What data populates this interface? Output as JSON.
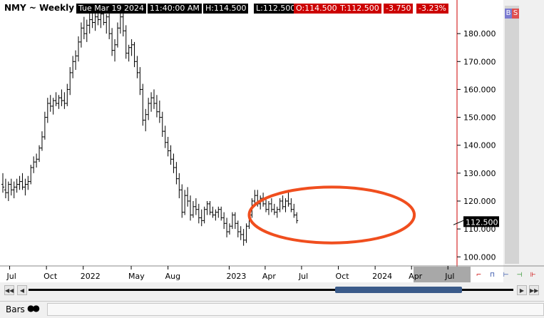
{
  "header": {
    "title": "NMY ~ Weekly",
    "date": "Tue Mar 19 2024",
    "time": "11:40:00 AM",
    "high": "H:114.500",
    "low": "L:112.500",
    "open": "O:114.500",
    "last": "T:112.500",
    "change": "-3.750",
    "change_pct": "-3.23%",
    "b_label": "B",
    "s_label": "S"
  },
  "price_tag": "112.500",
  "colors": {
    "ellipse": "#f04e1e",
    "bars": "#000000",
    "price_tag_bg": "#000000",
    "red_box": "#cc0000",
    "scroll_thumb": "#3b5b8a"
  },
  "status": {
    "bars_label": "Bars"
  },
  "icons": [
    "scroll-first-icon",
    "scroll-left-icon",
    "scroll-right-icon",
    "scroll-last-icon",
    "chain-icon"
  ],
  "chart_data": {
    "type": "ohlc-bar",
    "interval": "weekly",
    "ylim": [
      97,
      190
    ],
    "yticks": [
      100,
      110,
      120,
      130,
      140,
      150,
      160,
      170,
      180
    ],
    "ytick_labels": [
      "100.000",
      "110.000",
      "120.000",
      "130.000",
      "140.000",
      "150.000",
      "160.000",
      "170.000",
      "180.000"
    ],
    "xlim": [
      "2021-06-14",
      "2024-07-22"
    ],
    "xticks": [
      {
        "label": "Jul",
        "date": "2021-07-01"
      },
      {
        "label": "Oct",
        "date": "2021-10-01"
      },
      {
        "label": "2022",
        "date": "2022-01-01"
      },
      {
        "label": "May",
        "date": "2022-05-01"
      },
      {
        "label": "Aug",
        "date": "2022-08-01"
      },
      {
        "label": "2023",
        "date": "2023-01-01"
      },
      {
        "label": "Apr",
        "date": "2023-04-01"
      },
      {
        "label": "Jul",
        "date": "2023-07-01"
      },
      {
        "label": "Oct",
        "date": "2023-10-01"
      },
      {
        "label": "2024",
        "date": "2024-01-01"
      },
      {
        "label": "Apr",
        "date": "2024-04-01"
      },
      {
        "label": "Jul",
        "date": "2024-07-01"
      }
    ],
    "last_price": 112.5,
    "annotation": {
      "type": "ellipse",
      "x_from": "2023-02-20",
      "x_to": "2024-04-08",
      "y_center": 115,
      "y_halfheight": 10
    },
    "start_date": "2021-06-14",
    "bars": [
      [
        126,
        130,
        123,
        125
      ],
      [
        124,
        128,
        121,
        123
      ],
      [
        123,
        127,
        120,
        126
      ],
      [
        126,
        128,
        122,
        124
      ],
      [
        124,
        127,
        121,
        125
      ],
      [
        125,
        128,
        123,
        126
      ],
      [
        126,
        129,
        124,
        127
      ],
      [
        127,
        130,
        124,
        125
      ],
      [
        125,
        128,
        122,
        126
      ],
      [
        126,
        129,
        124,
        127
      ],
      [
        127,
        133,
        126,
        132
      ],
      [
        132,
        136,
        130,
        134
      ],
      [
        134,
        137,
        132,
        135
      ],
      [
        135,
        140,
        134,
        139
      ],
      [
        139,
        145,
        138,
        143
      ],
      [
        143,
        152,
        142,
        150
      ],
      [
        150,
        157,
        148,
        155
      ],
      [
        155,
        158,
        152,
        154
      ],
      [
        154,
        157,
        151,
        156
      ],
      [
        156,
        159,
        154,
        155
      ],
      [
        155,
        158,
        153,
        157
      ],
      [
        157,
        160,
        154,
        156
      ],
      [
        156,
        159,
        153,
        155
      ],
      [
        155,
        162,
        154,
        160
      ],
      [
        160,
        168,
        158,
        166
      ],
      [
        166,
        172,
        164,
        170
      ],
      [
        170,
        174,
        167,
        172
      ],
      [
        172,
        179,
        170,
        177
      ],
      [
        177,
        184,
        175,
        182
      ],
      [
        182,
        186,
        178,
        180
      ],
      [
        180,
        185,
        177,
        183
      ],
      [
        183,
        188,
        180,
        185
      ],
      [
        185,
        189,
        182,
        184
      ],
      [
        184,
        188,
        181,
        186
      ],
      [
        186,
        189,
        183,
        185
      ],
      [
        185,
        188,
        182,
        187
      ],
      [
        187,
        189,
        183,
        184
      ],
      [
        184,
        187,
        180,
        186
      ],
      [
        186,
        188,
        178,
        180
      ],
      [
        180,
        182,
        172,
        174
      ],
      [
        174,
        178,
        170,
        176
      ],
      [
        176,
        184,
        175,
        182
      ],
      [
        182,
        188,
        180,
        186
      ],
      [
        186,
        189,
        179,
        181
      ],
      [
        181,
        183,
        171,
        173
      ],
      [
        173,
        176,
        170,
        175
      ],
      [
        175,
        178,
        172,
        176
      ],
      [
        176,
        177,
        168,
        170
      ],
      [
        170,
        172,
        164,
        166
      ],
      [
        166,
        168,
        158,
        160
      ],
      [
        160,
        162,
        147,
        149
      ],
      [
        149,
        153,
        145,
        151
      ],
      [
        151,
        157,
        149,
        155
      ],
      [
        155,
        159,
        152,
        157
      ],
      [
        157,
        160,
        153,
        155
      ],
      [
        155,
        158,
        150,
        152
      ],
      [
        152,
        156,
        148,
        150
      ],
      [
        150,
        152,
        143,
        145
      ],
      [
        145,
        147,
        139,
        141
      ],
      [
        141,
        143,
        136,
        138
      ],
      [
        138,
        140,
        133,
        135
      ],
      [
        135,
        137,
        130,
        132
      ],
      [
        132,
        134,
        126,
        128
      ],
      [
        128,
        130,
        121,
        124
      ],
      [
        124,
        126,
        114,
        116
      ],
      [
        116,
        124,
        115,
        122
      ],
      [
        122,
        125,
        118,
        120
      ],
      [
        120,
        122,
        113,
        115
      ],
      [
        115,
        120,
        114,
        118
      ],
      [
        118,
        121,
        115,
        117
      ],
      [
        117,
        119,
        112,
        114
      ],
      [
        114,
        117,
        111,
        113
      ],
      [
        113,
        118,
        112,
        117
      ],
      [
        117,
        120,
        115,
        119
      ],
      [
        119,
        120,
        115,
        116
      ],
      [
        116,
        118,
        114,
        115
      ],
      [
        115,
        117,
        113,
        116
      ],
      [
        116,
        118,
        114,
        117
      ],
      [
        117,
        118,
        113,
        114
      ],
      [
        114,
        116,
        110,
        112
      ],
      [
        112,
        114,
        107,
        109
      ],
      [
        109,
        112,
        108,
        111
      ],
      [
        111,
        116,
        110,
        115
      ],
      [
        115,
        116,
        110,
        112
      ],
      [
        112,
        113,
        107,
        109
      ],
      [
        109,
        111,
        106,
        108
      ],
      [
        108,
        110,
        104,
        106
      ],
      [
        106,
        112,
        105,
        111
      ],
      [
        111,
        116,
        110,
        115
      ],
      [
        115,
        121,
        114,
        120
      ],
      [
        120,
        124,
        118,
        122
      ],
      [
        122,
        124,
        118,
        119
      ],
      [
        119,
        122,
        117,
        121
      ],
      [
        121,
        123,
        118,
        119
      ],
      [
        119,
        121,
        116,
        117
      ],
      [
        117,
        120,
        115,
        119
      ],
      [
        119,
        121,
        116,
        117
      ],
      [
        117,
        119,
        115,
        116
      ],
      [
        116,
        118,
        114,
        117
      ],
      [
        117,
        121,
        116,
        120
      ],
      [
        120,
        122,
        117,
        118
      ],
      [
        118,
        121,
        116,
        120
      ],
      [
        120,
        124,
        118,
        119
      ],
      [
        119,
        121,
        116,
        117
      ],
      [
        117,
        119,
        114,
        115
      ],
      [
        115,
        116,
        112,
        113
      ]
    ]
  }
}
